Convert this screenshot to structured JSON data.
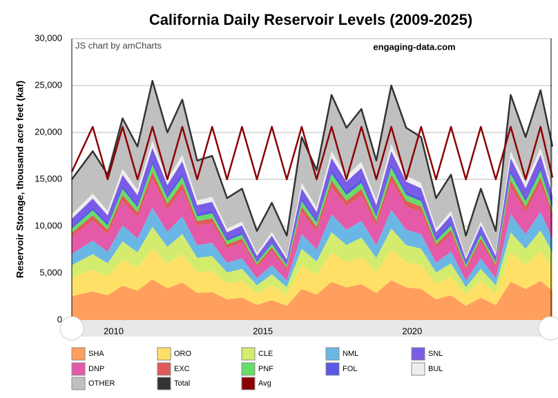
{
  "chart_data": {
    "type": "area",
    "stacked": true,
    "title": "California Daily Reservoir Levels (2009-2025)",
    "y_label": "Reservoir Storage, thousand acre feet (kaf)",
    "credit": "JS chart by amCharts",
    "watermark": "engaging-data.com",
    "grid": true,
    "xlim": [
      2008.6,
      2024.7
    ],
    "xticks": [
      2010,
      2015,
      2020
    ],
    "ylim": [
      0,
      30000
    ],
    "yticks": [
      0,
      {
        "value": 5000,
        "label": "5,000"
      },
      {
        "value": 10000,
        "label": "10,000"
      },
      {
        "value": 15000,
        "label": "15,000"
      },
      {
        "value": 20000,
        "label": "20,000"
      },
      {
        "value": 25000,
        "label": "25,000"
      },
      {
        "value": 30000,
        "label": "30,000"
      }
    ],
    "x": [
      2008.6,
      2009.3,
      2009.8,
      2010.3,
      2010.8,
      2011.3,
      2011.8,
      2012.3,
      2012.8,
      2013.3,
      2013.8,
      2014.3,
      2014.8,
      2015.3,
      2015.8,
      2016.3,
      2016.8,
      2017.3,
      2017.8,
      2018.3,
      2018.8,
      2019.3,
      2019.8,
      2020.3,
      2020.8,
      2021.3,
      2021.8,
      2022.3,
      2022.8,
      2023.3,
      2023.8,
      2024.3,
      2024.7
    ],
    "series": [
      {
        "name": "SHA",
        "color": "#ff9f5e",
        "values": [
          2550,
          3060,
          2635,
          3655,
          3145,
          4335,
          3400,
          3995,
          2890,
          2975,
          2210,
          2380,
          1615,
          2125,
          1530,
          3315,
          2720,
          4080,
          3485,
          3825,
          2890,
          4250,
          3485,
          3315,
          2210,
          2635,
          1530,
          2380,
          1615,
          4080,
          3315,
          4165,
          3145
        ]
      },
      {
        "name": "ORO",
        "color": "#ffe066",
        "values": [
          1950,
          2340,
          2015,
          2795,
          2405,
          3315,
          2600,
          3055,
          2210,
          2275,
          1690,
          1820,
          1235,
          1625,
          1170,
          2535,
          2080,
          3120,
          2665,
          2925,
          2210,
          3250,
          2665,
          2535,
          1690,
          2015,
          1170,
          1820,
          1235,
          3120,
          2535,
          3185,
          2405
        ]
      },
      {
        "name": "CLE",
        "color": "#d4ec6e",
        "values": [
          1350,
          1620,
          1395,
          1935,
          1665,
          2295,
          1800,
          2115,
          1530,
          1575,
          1170,
          1260,
          855,
          1125,
          810,
          1755,
          1440,
          2160,
          1845,
          2025,
          1530,
          2250,
          1845,
          1755,
          1170,
          1395,
          810,
          1260,
          855,
          2160,
          1755,
          2205,
          1665
        ]
      },
      {
        "name": "NML",
        "color": "#6ab7e6",
        "values": [
          1200,
          1440,
          1240,
          1720,
          1480,
          2040,
          1600,
          1880,
          1360,
          1400,
          1040,
          1120,
          760,
          1000,
          720,
          1560,
          1280,
          1920,
          1640,
          1800,
          1360,
          2000,
          1640,
          1560,
          1040,
          1240,
          720,
          1120,
          760,
          1920,
          1560,
          1960,
          1480
        ]
      },
      {
        "name": "DNP",
        "color": "#e45aa8",
        "values": [
          1800,
          2160,
          1860,
          2580,
          2220,
          3060,
          2400,
          2820,
          2040,
          2100,
          1560,
          1680,
          1140,
          1500,
          1080,
          2340,
          1920,
          2880,
          2460,
          2700,
          2040,
          3000,
          2460,
          2340,
          1560,
          1860,
          1080,
          1680,
          1140,
          2880,
          2340,
          2940,
          2220
        ]
      },
      {
        "name": "EXC",
        "color": "#e05a5a",
        "values": [
          450,
          540,
          465,
          645,
          555,
          765,
          600,
          705,
          510,
          525,
          390,
          420,
          285,
          375,
          270,
          585,
          480,
          720,
          615,
          675,
          510,
          750,
          615,
          585,
          390,
          465,
          270,
          420,
          285,
          720,
          585,
          735,
          555
        ]
      },
      {
        "name": "PNF",
        "color": "#66dd66",
        "values": [
          450,
          540,
          465,
          645,
          555,
          765,
          600,
          705,
          510,
          525,
          390,
          420,
          285,
          375,
          270,
          585,
          480,
          720,
          615,
          675,
          510,
          750,
          615,
          585,
          390,
          465,
          270,
          420,
          285,
          720,
          585,
          735,
          555
        ]
      },
      {
        "name": "FOL",
        "color": "#5a5ae6",
        "values": [
          300,
          360,
          310,
          430,
          370,
          510,
          400,
          470,
          340,
          350,
          260,
          280,
          190,
          250,
          180,
          390,
          320,
          480,
          410,
          450,
          340,
          500,
          410,
          390,
          260,
          310,
          180,
          280,
          190,
          480,
          390,
          490,
          370
        ]
      },
      {
        "name": "SNL",
        "color": "#7a5ce6",
        "values": [
          750,
          900,
          775,
          1075,
          925,
          1275,
          1000,
          1175,
          850,
          875,
          650,
          700,
          475,
          625,
          450,
          975,
          800,
          1200,
          1025,
          1125,
          850,
          1250,
          1025,
          975,
          650,
          775,
          450,
          700,
          475,
          1200,
          975,
          1225,
          925
        ]
      },
      {
        "name": "BUL",
        "color": "#eeeeee",
        "values": [
          450,
          540,
          465,
          645,
          555,
          765,
          600,
          705,
          510,
          525,
          390,
          420,
          285,
          375,
          270,
          585,
          480,
          720,
          615,
          675,
          510,
          750,
          615,
          585,
          390,
          465,
          270,
          420,
          285,
          720,
          585,
          735,
          555
        ]
      },
      {
        "name": "OTHER",
        "color": "#c0c0c0",
        "values": [
          3750,
          4500,
          3875,
          5375,
          4625,
          6375,
          5000,
          5875,
          4250,
          4375,
          3250,
          3500,
          2375,
          3125,
          2250,
          4875,
          4000,
          6000,
          5125,
          5625,
          4250,
          6250,
          5125,
          4875,
          3250,
          3875,
          2250,
          3500,
          2375,
          6000,
          4875,
          6125,
          4625
        ]
      },
      {
        "name": "Total",
        "color": "#333333",
        "type": "line",
        "values": [
          15000,
          18000,
          15500,
          21500,
          18500,
          25500,
          20000,
          23500,
          17000,
          17500,
          13000,
          14000,
          9500,
          12500,
          9000,
          19500,
          16000,
          24000,
          20500,
          22500,
          17000,
          25000,
          20500,
          19500,
          13000,
          15500,
          9000,
          14000,
          9500,
          24000,
          19500,
          24500,
          18500
        ]
      },
      {
        "name": "Avg",
        "color": "#8b0000",
        "type": "line",
        "values": [
          15800,
          20600,
          15000,
          20600,
          15000,
          20600,
          15000,
          20600,
          15000,
          20600,
          15000,
          20600,
          15000,
          20600,
          15000,
          20600,
          15000,
          20600,
          15000,
          20600,
          15000,
          20600,
          15000,
          20600,
          15000,
          20600,
          15000,
          20600,
          15000,
          20600,
          15000,
          20600,
          15200
        ]
      }
    ]
  }
}
